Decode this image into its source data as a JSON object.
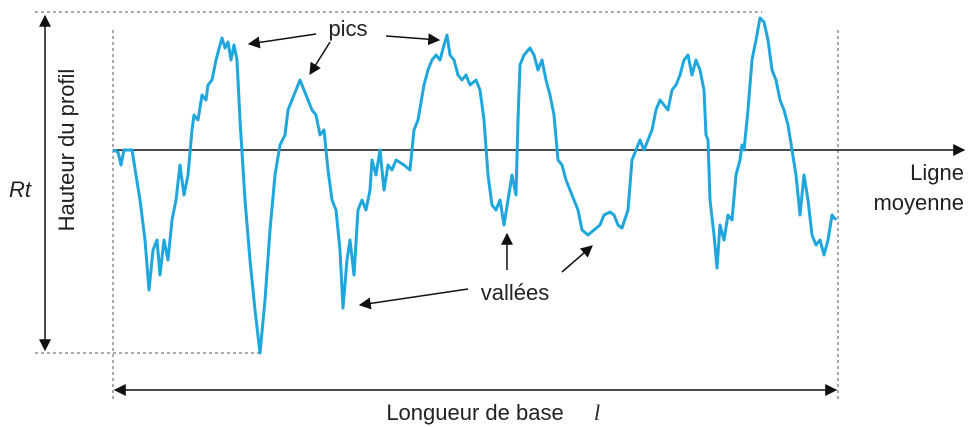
{
  "labels": {
    "peaks": "pics",
    "valleys": "vallées",
    "rt": "Rt",
    "vertical_axis": "Hauteur du profil",
    "mean_line": [
      "Ligne",
      "moyenne"
    ],
    "base_length": "Longueur de base",
    "base_length_symbol": "l"
  }
}
